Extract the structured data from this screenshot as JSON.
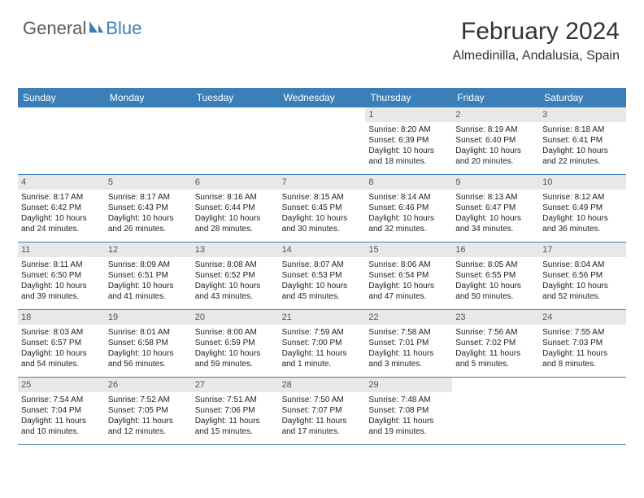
{
  "logo": {
    "part1": "General",
    "part2": "Blue"
  },
  "header": {
    "month": "February 2024",
    "location": "Almedinilla, Andalusia, Spain"
  },
  "theme": {
    "header_bg": "#3a7fb8",
    "header_fg": "#ffffff",
    "daynum_bg": "#e8e8e8",
    "daynum_fg": "#555555",
    "text_color": "#222222",
    "rule_color": "#3a7fb8",
    "body_font_size": 10
  },
  "day_names": [
    "Sunday",
    "Monday",
    "Tuesday",
    "Wednesday",
    "Thursday",
    "Friday",
    "Saturday"
  ],
  "weeks": [
    [
      {
        "blank": true
      },
      {
        "blank": true
      },
      {
        "blank": true
      },
      {
        "blank": true
      },
      {
        "n": "1",
        "sr": "8:20 AM",
        "ss": "6:39 PM",
        "dl": "10 hours and 18 minutes."
      },
      {
        "n": "2",
        "sr": "8:19 AM",
        "ss": "6:40 PM",
        "dl": "10 hours and 20 minutes."
      },
      {
        "n": "3",
        "sr": "8:18 AM",
        "ss": "6:41 PM",
        "dl": "10 hours and 22 minutes."
      }
    ],
    [
      {
        "n": "4",
        "sr": "8:17 AM",
        "ss": "6:42 PM",
        "dl": "10 hours and 24 minutes."
      },
      {
        "n": "5",
        "sr": "8:17 AM",
        "ss": "6:43 PM",
        "dl": "10 hours and 26 minutes."
      },
      {
        "n": "6",
        "sr": "8:16 AM",
        "ss": "6:44 PM",
        "dl": "10 hours and 28 minutes."
      },
      {
        "n": "7",
        "sr": "8:15 AM",
        "ss": "6:45 PM",
        "dl": "10 hours and 30 minutes."
      },
      {
        "n": "8",
        "sr": "8:14 AM",
        "ss": "6:46 PM",
        "dl": "10 hours and 32 minutes."
      },
      {
        "n": "9",
        "sr": "8:13 AM",
        "ss": "6:47 PM",
        "dl": "10 hours and 34 minutes."
      },
      {
        "n": "10",
        "sr": "8:12 AM",
        "ss": "6:49 PM",
        "dl": "10 hours and 36 minutes."
      }
    ],
    [
      {
        "n": "11",
        "sr": "8:11 AM",
        "ss": "6:50 PM",
        "dl": "10 hours and 39 minutes."
      },
      {
        "n": "12",
        "sr": "8:09 AM",
        "ss": "6:51 PM",
        "dl": "10 hours and 41 minutes."
      },
      {
        "n": "13",
        "sr": "8:08 AM",
        "ss": "6:52 PM",
        "dl": "10 hours and 43 minutes."
      },
      {
        "n": "14",
        "sr": "8:07 AM",
        "ss": "6:53 PM",
        "dl": "10 hours and 45 minutes."
      },
      {
        "n": "15",
        "sr": "8:06 AM",
        "ss": "6:54 PM",
        "dl": "10 hours and 47 minutes."
      },
      {
        "n": "16",
        "sr": "8:05 AM",
        "ss": "6:55 PM",
        "dl": "10 hours and 50 minutes."
      },
      {
        "n": "17",
        "sr": "8:04 AM",
        "ss": "6:56 PM",
        "dl": "10 hours and 52 minutes."
      }
    ],
    [
      {
        "n": "18",
        "sr": "8:03 AM",
        "ss": "6:57 PM",
        "dl": "10 hours and 54 minutes."
      },
      {
        "n": "19",
        "sr": "8:01 AM",
        "ss": "6:58 PM",
        "dl": "10 hours and 56 minutes."
      },
      {
        "n": "20",
        "sr": "8:00 AM",
        "ss": "6:59 PM",
        "dl": "10 hours and 59 minutes."
      },
      {
        "n": "21",
        "sr": "7:59 AM",
        "ss": "7:00 PM",
        "dl": "11 hours and 1 minute."
      },
      {
        "n": "22",
        "sr": "7:58 AM",
        "ss": "7:01 PM",
        "dl": "11 hours and 3 minutes."
      },
      {
        "n": "23",
        "sr": "7:56 AM",
        "ss": "7:02 PM",
        "dl": "11 hours and 5 minutes."
      },
      {
        "n": "24",
        "sr": "7:55 AM",
        "ss": "7:03 PM",
        "dl": "11 hours and 8 minutes."
      }
    ],
    [
      {
        "n": "25",
        "sr": "7:54 AM",
        "ss": "7:04 PM",
        "dl": "11 hours and 10 minutes."
      },
      {
        "n": "26",
        "sr": "7:52 AM",
        "ss": "7:05 PM",
        "dl": "11 hours and 12 minutes."
      },
      {
        "n": "27",
        "sr": "7:51 AM",
        "ss": "7:06 PM",
        "dl": "11 hours and 15 minutes."
      },
      {
        "n": "28",
        "sr": "7:50 AM",
        "ss": "7:07 PM",
        "dl": "11 hours and 17 minutes."
      },
      {
        "n": "29",
        "sr": "7:48 AM",
        "ss": "7:08 PM",
        "dl": "11 hours and 19 minutes."
      },
      {
        "blank": true
      },
      {
        "blank": true
      }
    ]
  ],
  "labels": {
    "sunrise": "Sunrise: ",
    "sunset": "Sunset: ",
    "daylight": "Daylight: "
  }
}
